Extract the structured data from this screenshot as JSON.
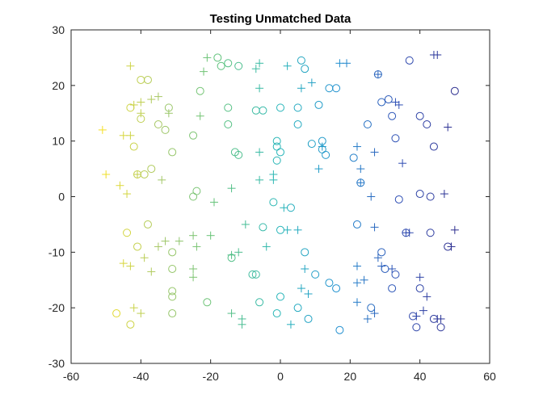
{
  "chart_data": {
    "type": "scatter",
    "title": "Testing Unmatched Data",
    "xlabel": "",
    "ylabel": "",
    "xlim": [
      -60,
      60
    ],
    "ylim": [
      -30,
      30
    ],
    "x_ticks": [
      -60,
      -40,
      -20,
      0,
      20,
      40,
      60
    ],
    "y_ticks": [
      -30,
      -20,
      -10,
      0,
      10,
      20,
      30
    ],
    "grid": false,
    "legend": "none",
    "color_scale": {
      "low_x_color": "#f9e11e",
      "high_x_color": "#2a2a8c",
      "stops": [
        "#f9e11e",
        "#a6c766",
        "#5ec27a",
        "#27b6b8",
        "#1f8fd0",
        "#2f4fb5",
        "#2a2a8c"
      ]
    },
    "series": [
      {
        "marker": "circle",
        "points": [
          [
            -43,
            -23
          ],
          [
            -47,
            -21
          ],
          [
            -31,
            -21
          ],
          [
            -31,
            -17
          ],
          [
            -31,
            -18
          ],
          [
            -41,
            -9
          ],
          [
            -44,
            -6.5
          ],
          [
            -38,
            -5
          ],
          [
            -31,
            -10
          ],
          [
            -31,
            -13
          ],
          [
            -41,
            4
          ],
          [
            -39,
            4
          ],
          [
            -37,
            5
          ],
          [
            -31,
            8
          ],
          [
            -42,
            9
          ],
          [
            -43,
            16
          ],
          [
            -40,
            14
          ],
          [
            -35,
            13
          ],
          [
            -33,
            12
          ],
          [
            -32,
            16
          ],
          [
            -40,
            21
          ],
          [
            -38,
            21
          ],
          [
            -25,
            11
          ],
          [
            -25,
            0
          ],
          [
            -24,
            1
          ],
          [
            -23,
            19
          ],
          [
            -18,
            25
          ],
          [
            -17,
            23.5
          ],
          [
            -21,
            -19
          ],
          [
            -15,
            24
          ],
          [
            -12,
            23.5
          ],
          [
            -15,
            16
          ],
          [
            -15,
            13
          ],
          [
            -13,
            8
          ],
          [
            -12,
            7.5
          ],
          [
            -7,
            15.5
          ],
          [
            -5,
            15.5
          ],
          [
            -14,
            -11
          ],
          [
            -7,
            -14
          ],
          [
            -6,
            -19
          ],
          [
            -5,
            -5.5
          ],
          [
            -8,
            -14
          ],
          [
            -1,
            -21
          ],
          [
            0,
            -18
          ],
          [
            0,
            -6
          ],
          [
            -2,
            -1
          ],
          [
            -1,
            6.5
          ],
          [
            -1,
            9
          ],
          [
            -1,
            10
          ],
          [
            0,
            8
          ],
          [
            0,
            16
          ],
          [
            3,
            -2
          ],
          [
            5,
            16
          ],
          [
            5,
            13
          ],
          [
            6,
            24.5
          ],
          [
            7,
            23
          ],
          [
            7,
            -10
          ],
          [
            8,
            -22
          ],
          [
            5,
            -20
          ],
          [
            9,
            9.5
          ],
          [
            10,
            -14
          ],
          [
            11,
            16.5
          ],
          [
            12,
            8.5
          ],
          [
            12,
            10
          ],
          [
            13,
            7.5
          ],
          [
            14,
            -15.5
          ],
          [
            14,
            19.5
          ],
          [
            16,
            19.5
          ],
          [
            16,
            -16.5
          ],
          [
            17,
            -24
          ],
          [
            21,
            7
          ],
          [
            23,
            2.5
          ],
          [
            25,
            13
          ],
          [
            26,
            -20
          ],
          [
            28,
            22
          ],
          [
            29,
            17
          ],
          [
            29,
            -10
          ],
          [
            30,
            -13
          ],
          [
            31,
            17.5
          ],
          [
            32,
            -16.5
          ],
          [
            32,
            14.5
          ],
          [
            33,
            -14
          ],
          [
            33,
            10.5
          ],
          [
            34,
            -0.5
          ],
          [
            36,
            -6.5
          ],
          [
            37,
            24.5
          ],
          [
            38,
            -21.5
          ],
          [
            39,
            -23.5
          ],
          [
            40,
            0.5
          ],
          [
            40,
            14.5
          ],
          [
            40,
            -16.5
          ],
          [
            42,
            13
          ],
          [
            43,
            0
          ],
          [
            43,
            -6.5
          ],
          [
            44,
            9
          ],
          [
            44,
            -22
          ],
          [
            46,
            -23.5
          ],
          [
            48,
            -9
          ],
          [
            50,
            19
          ],
          [
            22,
            -5
          ]
        ]
      },
      {
        "marker": "plus",
        "points": [
          [
            -51,
            12
          ],
          [
            -50,
            4
          ],
          [
            -46,
            2
          ],
          [
            -44,
            0.5
          ],
          [
            -45,
            11
          ],
          [
            -43,
            11
          ],
          [
            -43,
            23.5
          ],
          [
            -42,
            16.5
          ],
          [
            -41,
            4
          ],
          [
            -40,
            17
          ],
          [
            -40,
            15
          ],
          [
            -37,
            17.5
          ],
          [
            -35,
            18
          ],
          [
            -34,
            3
          ],
          [
            -32,
            15
          ],
          [
            -45,
            -12
          ],
          [
            -43,
            -12.5
          ],
          [
            -42,
            -20
          ],
          [
            -40,
            -21
          ],
          [
            -39,
            -11
          ],
          [
            -37,
            -13.5
          ],
          [
            -35,
            -9
          ],
          [
            -33,
            -8
          ],
          [
            -29,
            -8
          ],
          [
            -25,
            -7
          ],
          [
            -25,
            -13
          ],
          [
            -25,
            -14.5
          ],
          [
            -24,
            -9
          ],
          [
            -23,
            14.5
          ],
          [
            -22,
            22.5
          ],
          [
            -21,
            25
          ],
          [
            -20,
            -7
          ],
          [
            -19,
            -1
          ],
          [
            -14,
            1.5
          ],
          [
            -14,
            -10.5
          ],
          [
            -12,
            -10
          ],
          [
            -10,
            -5
          ],
          [
            -11,
            -23
          ],
          [
            -14,
            -21
          ],
          [
            -11,
            -22
          ],
          [
            -7,
            23
          ],
          [
            -6,
            24
          ],
          [
            -6,
            19.5
          ],
          [
            -6,
            8
          ],
          [
            -6,
            3
          ],
          [
            -4,
            -9
          ],
          [
            -2,
            4
          ],
          [
            -2,
            3
          ],
          [
            2,
            -6
          ],
          [
            1,
            -2
          ],
          [
            2,
            23.5
          ],
          [
            3,
            -23
          ],
          [
            5,
            -6
          ],
          [
            6,
            19.5
          ],
          [
            6,
            -16.5
          ],
          [
            7,
            -13
          ],
          [
            8,
            -17.5
          ],
          [
            9,
            20.5
          ],
          [
            11,
            5
          ],
          [
            12,
            9
          ],
          [
            17,
            24
          ],
          [
            19,
            24
          ],
          [
            22,
            9
          ],
          [
            22,
            -15.5
          ],
          [
            22,
            -19
          ],
          [
            22,
            -12.5
          ],
          [
            23,
            5
          ],
          [
            23,
            2.5
          ],
          [
            24,
            -15
          ],
          [
            25,
            -22
          ],
          [
            26,
            0
          ],
          [
            27,
            -5.5
          ],
          [
            27,
            8
          ],
          [
            27,
            -21
          ],
          [
            28,
            -11
          ],
          [
            29,
            -12.5
          ],
          [
            28,
            22
          ],
          [
            32,
            -13
          ],
          [
            33,
            17
          ],
          [
            34,
            16.5
          ],
          [
            35,
            6
          ],
          [
            36,
            -6.5
          ],
          [
            37,
            -6.5
          ],
          [
            39,
            -21.5
          ],
          [
            40,
            -14.5
          ],
          [
            41,
            -20.5
          ],
          [
            42,
            -18
          ],
          [
            44,
            25.5
          ],
          [
            45,
            25.5
          ],
          [
            45,
            -22
          ],
          [
            47,
            0.5
          ],
          [
            48,
            12.5
          ],
          [
            49,
            -9
          ],
          [
            50,
            -6
          ],
          [
            46,
            -22
          ]
        ]
      }
    ]
  }
}
